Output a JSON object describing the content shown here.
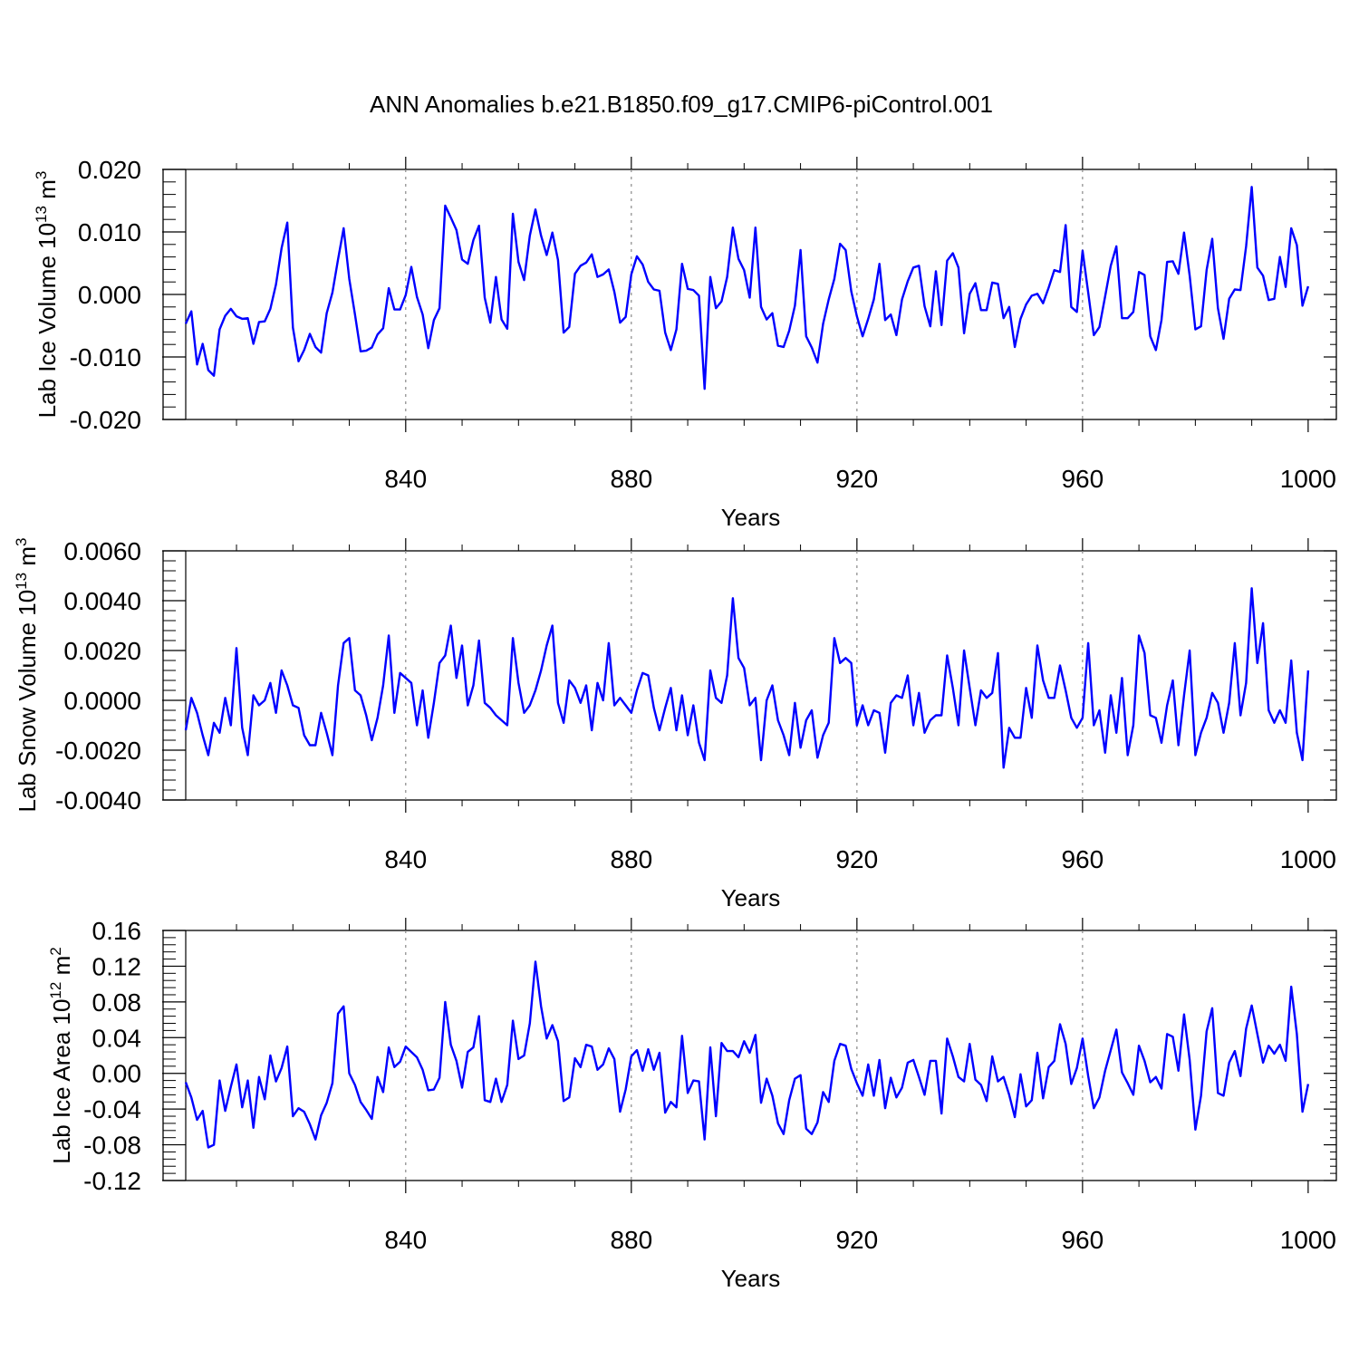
{
  "title": "ANN Anomalies b.e21.B1850.f09_g17.CMIP6-piControl.001",
  "colors": {
    "series": "#0000ff",
    "axes": "#000000",
    "gridline": "#888888"
  },
  "chart_data": [
    {
      "type": "line",
      "xlabel": "Years",
      "ylabel_main": "Lab Ice Volume 10",
      "ylabel_exp": "13",
      "ylabel_unit": "m",
      "ylabel_unit_exp": "3",
      "xlim": [
        801,
        1005
      ],
      "ylim": [
        -0.02,
        0.02
      ],
      "xticks": [
        840,
        880,
        920,
        960,
        1000
      ],
      "xtick_labels": [
        "840",
        "880",
        "920",
        "960",
        "1000"
      ],
      "yticks": [
        -0.02,
        -0.01,
        0.0,
        0.01,
        0.02
      ],
      "ytick_labels": [
        "-0.020",
        "-0.010",
        "0.000",
        "0.010",
        "0.020"
      ],
      "x_start": 801,
      "series": [
        {
          "name": "Lab Ice Volume",
          "color": "#0000ff",
          "values": [
            -0.0047,
            -0.0027,
            -0.0112,
            -0.0079,
            -0.0121,
            -0.013,
            -0.0056,
            -0.0034,
            -0.0023,
            -0.0035,
            -0.0039,
            -0.0038,
            -0.0079,
            -0.0044,
            -0.0043,
            -0.0023,
            0.0016,
            0.0074,
            0.0115,
            -0.0053,
            -0.0107,
            -0.0089,
            -0.0063,
            -0.0084,
            -0.0093,
            -0.003,
            0.0003,
            0.0056,
            0.0106,
            0.0025,
            -0.0032,
            -0.0091,
            -0.009,
            -0.0085,
            -0.0064,
            -0.0054,
            0.001,
            -0.0024,
            -0.0024,
            -0.0001,
            0.0044,
            -0.0004,
            -0.0032,
            -0.0086,
            -0.0041,
            -0.0022,
            0.0142,
            0.0123,
            0.0103,
            0.0056,
            0.0049,
            0.0087,
            0.011,
            -0.0005,
            -0.0045,
            0.0028,
            -0.004,
            -0.0055,
            0.0129,
            0.0052,
            0.0023,
            0.0094,
            0.0136,
            0.0094,
            0.0063,
            0.0099,
            0.0055,
            -0.0061,
            -0.0052,
            0.0033,
            0.0046,
            0.0051,
            0.0064,
            0.0028,
            0.0032,
            0.004,
            0.0004,
            -0.0045,
            -0.0036,
            0.0032,
            0.0061,
            0.0048,
            0.002,
            0.0008,
            0.0006,
            -0.0061,
            -0.0089,
            -0.0056,
            0.0049,
            0.0009,
            0.0007,
            -0.0002,
            -0.0151,
            0.0028,
            -0.0022,
            -0.0011,
            0.0028,
            0.0107,
            0.0057,
            0.0039,
            -0.0005,
            0.0107,
            -0.002,
            -0.004,
            -0.003,
            -0.0082,
            -0.0084,
            -0.0058,
            -0.0018,
            0.0071,
            -0.0067,
            -0.0085,
            -0.0109,
            -0.0047,
            -0.0008,
            0.0025,
            0.0081,
            0.0071,
            0.0005,
            -0.0035,
            -0.0067,
            -0.0039,
            -0.0008,
            0.0049,
            -0.0041,
            -0.0032,
            -0.0065,
            -0.0008,
            0.0021,
            0.0043,
            0.0046,
            -0.0019,
            -0.0051,
            0.0037,
            -0.0049,
            0.0054,
            0.0066,
            0.0043,
            -0.0062,
            0.0001,
            0.0018,
            -0.0025,
            -0.0025,
            0.0019,
            0.0017,
            -0.0038,
            -0.002,
            -0.0084,
            -0.0039,
            -0.0016,
            -0.0002,
            0.0001,
            -0.0014,
            0.0011,
            0.0039,
            0.0036,
            0.0111,
            -0.002,
            -0.0028,
            0.007,
            0.0003,
            -0.0065,
            -0.0052,
            -0.0003,
            0.0046,
            0.0077,
            -0.0038,
            -0.0038,
            -0.0028,
            0.0036,
            0.0031,
            -0.0067,
            -0.0089,
            -0.0041,
            0.0052,
            0.0053,
            0.0033,
            0.0099,
            0.003,
            -0.0056,
            -0.0051,
            0.0039,
            0.0089,
            -0.0022,
            -0.0071,
            -0.0007,
            0.0008,
            0.0007,
            0.0077,
            0.0172,
            0.0043,
            0.003,
            -0.0009,
            -0.0007,
            0.006,
            0.0012,
            0.0106,
            0.0079,
            -0.0018,
            0.0013
          ]
        }
      ]
    },
    {
      "type": "line",
      "xlabel": "Years",
      "ylabel_main": "Lab Snow Volume 10",
      "ylabel_exp": "13",
      "ylabel_unit": "m",
      "ylabel_unit_exp": "3",
      "xlim": [
        801,
        1005
      ],
      "ylim": [
        -0.004,
        0.006
      ],
      "xticks": [
        840,
        880,
        920,
        960,
        1000
      ],
      "xtick_labels": [
        "840",
        "880",
        "920",
        "960",
        "1000"
      ],
      "yticks": [
        -0.004,
        -0.002,
        0.0,
        0.002,
        0.004,
        0.006
      ],
      "ytick_labels": [
        "-0.0040",
        "-0.0020",
        "0.0000",
        "0.0020",
        "0.0040",
        "0.0060"
      ],
      "x_start": 801,
      "series": [
        {
          "name": "Lab Snow Volume",
          "color": "#0000ff",
          "values": [
            -0.0012,
            0.0001,
            -0.0005,
            -0.0014,
            -0.0022,
            -0.0009,
            -0.0013,
            0.0001,
            -0.001,
            0.0021,
            -0.0011,
            -0.0022,
            0.0002,
            -0.0002,
            0.0,
            0.0007,
            -0.0005,
            0.0012,
            0.0006,
            -0.0002,
            -0.0003,
            -0.0014,
            -0.0018,
            -0.0018,
            -0.0005,
            -0.0013,
            -0.0022,
            0.0006,
            0.0023,
            0.0025,
            0.0004,
            0.0002,
            -0.0006,
            -0.0016,
            -0.0007,
            0.0006,
            0.0026,
            -0.0005,
            0.0011,
            0.0009,
            0.0007,
            -0.001,
            0.0004,
            -0.0015,
            -0.0001,
            0.0015,
            0.0018,
            0.003,
            0.0009,
            0.0022,
            -0.0002,
            0.0006,
            0.0024,
            -0.0001,
            -0.0003,
            -0.0006,
            -0.0008,
            -0.001,
            0.0025,
            0.0007,
            -0.0005,
            -0.0002,
            0.0004,
            0.0012,
            0.0022,
            0.003,
            -0.0001,
            -0.0009,
            0.0008,
            0.0005,
            -0.0001,
            0.0006,
            -0.0012,
            0.0007,
            0.0,
            0.0023,
            -0.0002,
            0.0001,
            -0.0002,
            -0.0005,
            0.0004,
            0.0011,
            0.001,
            -0.0003,
            -0.0012,
            -0.0003,
            0.0005,
            -0.0012,
            0.0002,
            -0.0014,
            -0.0002,
            -0.0017,
            -0.0024,
            0.0012,
            0.0001,
            -0.0001,
            0.001,
            0.0041,
            0.0017,
            0.0013,
            -0.0002,
            0.0001,
            -0.0024,
            0.0,
            0.0006,
            -0.0008,
            -0.0014,
            -0.0022,
            -0.0001,
            -0.0019,
            -0.0008,
            -0.0004,
            -0.0023,
            -0.0014,
            -0.0009,
            0.0025,
            0.0015,
            0.0017,
            0.0015,
            -0.001,
            -0.0002,
            -0.001,
            -0.0004,
            -0.0005,
            -0.0021,
            -0.0001,
            0.0002,
            0.0001,
            0.001,
            -0.001,
            0.0003,
            -0.0013,
            -0.0008,
            -0.0006,
            -0.0006,
            0.0018,
            0.0005,
            -0.001,
            0.002,
            0.0005,
            -0.001,
            0.0004,
            0.0001,
            0.0003,
            0.0019,
            -0.0027,
            -0.0011,
            -0.0015,
            -0.0015,
            0.0005,
            -0.0007,
            0.0022,
            0.0008,
            0.0001,
            0.0001,
            0.0014,
            0.0004,
            -0.0007,
            -0.0011,
            -0.0007,
            0.0023,
            -0.001,
            -0.0004,
            -0.0021,
            0.0002,
            -0.0013,
            0.0009,
            -0.0022,
            -0.001,
            0.0026,
            0.0019,
            -0.0006,
            -0.0007,
            -0.0017,
            -0.0002,
            0.0008,
            -0.0018,
            0.0002,
            0.002,
            -0.0022,
            -0.0013,
            -0.0007,
            0.0003,
            -0.0001,
            -0.0013,
            -0.0001,
            0.0023,
            -0.0006,
            0.0007,
            0.0045,
            0.0015,
            0.0031,
            -0.0004,
            -0.0009,
            -0.0004,
            -0.0009,
            0.0016,
            -0.0013,
            -0.0024,
            0.0012
          ]
        }
      ]
    },
    {
      "type": "line",
      "xlabel": "Years",
      "ylabel_main": "Lab Ice Area 10",
      "ylabel_exp": "12",
      "ylabel_unit": "m",
      "ylabel_unit_exp": "2",
      "xlim": [
        801,
        1005
      ],
      "ylim": [
        -0.12,
        0.16
      ],
      "xticks": [
        840,
        880,
        920,
        960,
        1000
      ],
      "xtick_labels": [
        "840",
        "880",
        "920",
        "960",
        "1000"
      ],
      "yticks": [
        -0.12,
        -0.08,
        -0.04,
        0.0,
        0.04,
        0.08,
        0.12,
        0.16
      ],
      "ytick_labels": [
        "-0.12",
        "-0.08",
        "-0.04",
        "0.00",
        "0.04",
        "0.08",
        "0.12",
        "0.16"
      ],
      "x_start": 801,
      "series": [
        {
          "name": "Lab Ice Area",
          "color": "#0000ff",
          "values": [
            -0.01,
            -0.027,
            -0.052,
            -0.042,
            -0.083,
            -0.08,
            -0.008,
            -0.042,
            -0.015,
            0.01,
            -0.038,
            -0.008,
            -0.061,
            -0.004,
            -0.029,
            0.02,
            -0.009,
            0.006,
            0.03,
            -0.048,
            -0.039,
            -0.043,
            -0.057,
            -0.074,
            -0.047,
            -0.033,
            -0.011,
            0.067,
            0.075,
            0.0,
            -0.013,
            -0.032,
            -0.041,
            -0.051,
            -0.004,
            -0.021,
            0.029,
            0.007,
            0.013,
            0.03,
            0.024,
            0.018,
            0.004,
            -0.019,
            -0.018,
            -0.005,
            0.08,
            0.032,
            0.014,
            -0.016,
            0.024,
            0.029,
            0.064,
            -0.03,
            -0.032,
            -0.006,
            -0.032,
            -0.013,
            0.059,
            0.016,
            0.02,
            0.056,
            0.125,
            0.075,
            0.039,
            0.054,
            0.036,
            -0.031,
            -0.027,
            0.017,
            0.007,
            0.032,
            0.03,
            0.004,
            0.01,
            0.028,
            0.016,
            -0.043,
            -0.018,
            0.019,
            0.026,
            0.003,
            0.027,
            0.004,
            0.023,
            -0.044,
            -0.032,
            -0.038,
            0.042,
            -0.022,
            -0.008,
            -0.009,
            -0.074,
            0.029,
            -0.048,
            0.034,
            0.025,
            0.025,
            0.018,
            0.036,
            0.023,
            0.043,
            -0.033,
            -0.006,
            -0.025,
            -0.056,
            -0.068,
            -0.03,
            -0.006,
            -0.002,
            -0.062,
            -0.068,
            -0.055,
            -0.021,
            -0.032,
            0.014,
            0.033,
            0.031,
            0.005,
            -0.011,
            -0.025,
            0.01,
            -0.025,
            0.015,
            -0.039,
            -0.005,
            -0.027,
            -0.016,
            0.012,
            0.015,
            -0.004,
            -0.024,
            0.014,
            0.014,
            -0.045,
            0.039,
            0.019,
            -0.004,
            -0.009,
            0.033,
            -0.007,
            -0.013,
            -0.031,
            0.019,
            -0.009,
            -0.004,
            -0.024,
            -0.049,
            -0.001,
            -0.037,
            -0.03,
            0.023,
            -0.028,
            0.007,
            0.014,
            0.055,
            0.033,
            -0.012,
            0.006,
            0.039,
            -0.003,
            -0.039,
            -0.027,
            0.003,
            0.026,
            0.049,
            0.001,
            -0.011,
            -0.024,
            0.031,
            0.014,
            -0.01,
            -0.004,
            -0.017,
            0.044,
            0.041,
            0.003,
            0.066,
            0.015,
            -0.063,
            -0.025,
            0.047,
            0.073,
            -0.022,
            -0.025,
            0.012,
            0.025,
            -0.003,
            0.05,
            0.076,
            0.044,
            0.012,
            0.031,
            0.022,
            0.032,
            0.014,
            0.097,
            0.044,
            -0.043,
            -0.012
          ]
        }
      ]
    }
  ]
}
